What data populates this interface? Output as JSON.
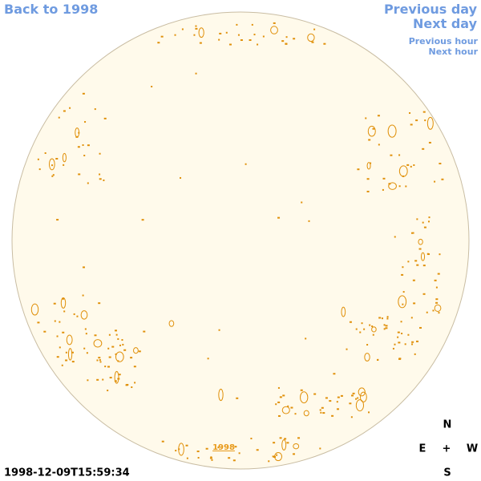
{
  "nav": {
    "back": "Back to 1998",
    "previous_day": "Previous day",
    "next_day": "Next day",
    "previous_hour": "Previous hour",
    "next_hour": "Next hour"
  },
  "disk": {
    "year_label": "1998"
  },
  "timestamp": "1998-12-09T15:59:34",
  "compass": {
    "north": "N",
    "east": "E",
    "center": "+",
    "west": "W",
    "south": "S"
  }
}
